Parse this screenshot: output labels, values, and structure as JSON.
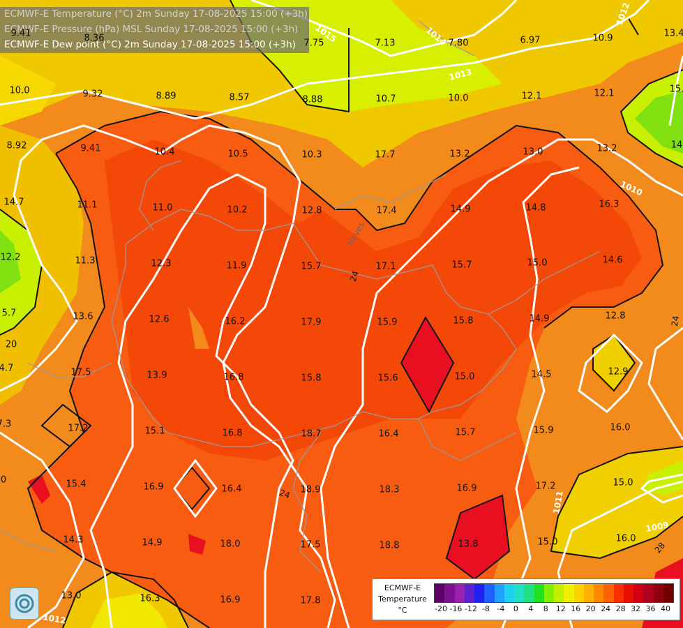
{
  "header": {
    "line1": "ECMWF-E Temperature (°C) 2m Sunday 17-08-2025 15:00 (+3h)",
    "line2": "ECMWF-E Pressure (hPa) MSL Sunday 17-08-2025 15:00 (+3h)",
    "line3": "ECMWF-E Dew point (°C) 2m Sunday 17-08-2025 15:00 (+3h)"
  },
  "dewpoints": [
    {
      "id": "d1",
      "v": "9.41"
    },
    {
      "id": "d2",
      "v": "8.36"
    },
    {
      "id": "d3",
      "v": "7.75"
    },
    {
      "id": "d4",
      "v": "7.13"
    },
    {
      "id": "d5",
      "v": "7.80"
    },
    {
      "id": "d6",
      "v": "6.97"
    },
    {
      "id": "d7",
      "v": "10.9"
    },
    {
      "id": "d8",
      "v": "13.4"
    },
    {
      "id": "d9",
      "v": "10.0"
    },
    {
      "id": "d10",
      "v": "9.32"
    },
    {
      "id": "d11",
      "v": "8.89"
    },
    {
      "id": "d12",
      "v": "8.57"
    },
    {
      "id": "d13",
      "v": "8.88"
    },
    {
      "id": "d14",
      "v": "10.7"
    },
    {
      "id": "d15",
      "v": "10.0"
    },
    {
      "id": "d16",
      "v": "12.1"
    },
    {
      "id": "d17",
      "v": "12.1"
    },
    {
      "id": "d18",
      "v": "15."
    },
    {
      "id": "d19",
      "v": "8.92"
    },
    {
      "id": "d20",
      "v": "9.41"
    },
    {
      "id": "d21",
      "v": "10.4"
    },
    {
      "id": "d22",
      "v": "10.5"
    },
    {
      "id": "d23",
      "v": "10.3"
    },
    {
      "id": "d24",
      "v": "17.7"
    },
    {
      "id": "d25",
      "v": "13.2"
    },
    {
      "id": "d26",
      "v": "13.0"
    },
    {
      "id": "d27",
      "v": "13.2"
    },
    {
      "id": "d28",
      "v": "14"
    },
    {
      "id": "d29",
      "v": "14.7"
    },
    {
      "id": "d30",
      "v": "11.1"
    },
    {
      "id": "d31",
      "v": "11.0"
    },
    {
      "id": "d32",
      "v": "10.2"
    },
    {
      "id": "d33",
      "v": "12.8"
    },
    {
      "id": "d34",
      "v": "17.4"
    },
    {
      "id": "d35",
      "v": "14.9"
    },
    {
      "id": "d36",
      "v": "14.8"
    },
    {
      "id": "d37",
      "v": "16.3"
    },
    {
      "id": "d38",
      "v": "12.2"
    },
    {
      "id": "d39",
      "v": "11.3"
    },
    {
      "id": "d40",
      "v": "12.3"
    },
    {
      "id": "d41",
      "v": "11.9"
    },
    {
      "id": "d42",
      "v": "15.7"
    },
    {
      "id": "d43",
      "v": "17.1"
    },
    {
      "id": "d44",
      "v": "15.7"
    },
    {
      "id": "d45",
      "v": "15.0"
    },
    {
      "id": "d46",
      "v": "14.6"
    },
    {
      "id": "d47",
      "v": "5.7"
    },
    {
      "id": "d48",
      "v": "13.6"
    },
    {
      "id": "d49",
      "v": "12.6"
    },
    {
      "id": "d50",
      "v": "16.2"
    },
    {
      "id": "d51",
      "v": "17.9"
    },
    {
      "id": "d52",
      "v": "15.9"
    },
    {
      "id": "d53",
      "v": "15.8"
    },
    {
      "id": "d54",
      "v": "14.9"
    },
    {
      "id": "d55",
      "v": "12.8"
    },
    {
      "id": "d56",
      "v": "20"
    },
    {
      "id": "d57",
      "v": "4.7"
    },
    {
      "id": "d58",
      "v": "17.5"
    },
    {
      "id": "d59",
      "v": "13.9"
    },
    {
      "id": "d60",
      "v": "16.8"
    },
    {
      "id": "d61",
      "v": "15.8"
    },
    {
      "id": "d62",
      "v": "15.6"
    },
    {
      "id": "d63",
      "v": "15.0"
    },
    {
      "id": "d64",
      "v": "14.5"
    },
    {
      "id": "d65",
      "v": "12.9"
    },
    {
      "id": "d66",
      "v": "7.3"
    },
    {
      "id": "d67",
      "v": "17.2"
    },
    {
      "id": "d68",
      "v": "15.1"
    },
    {
      "id": "d69",
      "v": "16.8"
    },
    {
      "id": "d70",
      "v": "18.7"
    },
    {
      "id": "d71",
      "v": "16.4"
    },
    {
      "id": "d72",
      "v": "15.7"
    },
    {
      "id": "d73",
      "v": "15.9"
    },
    {
      "id": "d74",
      "v": "16.0"
    },
    {
      "id": "d75",
      "v": "0"
    },
    {
      "id": "d76",
      "v": "15.4"
    },
    {
      "id": "d77",
      "v": "16.9"
    },
    {
      "id": "d78",
      "v": "16.4"
    },
    {
      "id": "d79",
      "v": "18.9"
    },
    {
      "id": "d80",
      "v": "18.3"
    },
    {
      "id": "d81",
      "v": "16.9"
    },
    {
      "id": "d82",
      "v": "17.2"
    },
    {
      "id": "d83",
      "v": "15.0"
    },
    {
      "id": "d84",
      "v": "14.3"
    },
    {
      "id": "d85",
      "v": "14.9"
    },
    {
      "id": "d86",
      "v": "18.0"
    },
    {
      "id": "d87",
      "v": "17.5"
    },
    {
      "id": "d88",
      "v": "18.8"
    },
    {
      "id": "d89",
      "v": "13.8"
    },
    {
      "id": "d90",
      "v": "15.0"
    },
    {
      "id": "d91",
      "v": "16.0"
    },
    {
      "id": "d92",
      "v": "13.0"
    },
    {
      "id": "d93",
      "v": "16.3"
    },
    {
      "id": "d94",
      "v": "16.9"
    },
    {
      "id": "d95",
      "v": "17.8"
    }
  ],
  "isobars": [
    {
      "id": "i1",
      "v": "1015"
    },
    {
      "id": "i2",
      "v": "1014"
    },
    {
      "id": "i3",
      "v": "1013"
    },
    {
      "id": "i4",
      "v": "1012"
    },
    {
      "id": "i5",
      "v": "1010"
    },
    {
      "id": "i6",
      "v": "1011"
    },
    {
      "id": "i7",
      "v": "1009"
    },
    {
      "id": "i8",
      "v": "1012"
    },
    {
      "id": "i9",
      "v": "1012"
    }
  ],
  "contour_labels": [
    {
      "id": "c1",
      "v": "24"
    },
    {
      "id": "c2",
      "v": "24"
    },
    {
      "id": "c3",
      "v": "24"
    },
    {
      "id": "c4",
      "v": "28"
    }
  ],
  "places": {
    "hevesi": "Heves"
  },
  "legend": {
    "title_line1": "ECMWF-E",
    "title_line2": "Temperature",
    "title_line3": "°C",
    "ticks": [
      "-20",
      "-16",
      "-12",
      "-8",
      "-4",
      "0",
      "4",
      "8",
      "12",
      "16",
      "20",
      "24",
      "28",
      "32",
      "36",
      "40"
    ],
    "colors": [
      "#5e0068",
      "#7c1090",
      "#9a20b0",
      "#6020d0",
      "#2020f0",
      "#2060ff",
      "#20a0ff",
      "#20d0f0",
      "#20e0c0",
      "#20e080",
      "#20e020",
      "#80f000",
      "#c0f000",
      "#f0f000",
      "#ffd000",
      "#ffb000",
      "#ff8800",
      "#ff6000",
      "#f83000",
      "#e81000",
      "#d00010",
      "#b00020",
      "#900010",
      "#700000"
    ]
  }
}
